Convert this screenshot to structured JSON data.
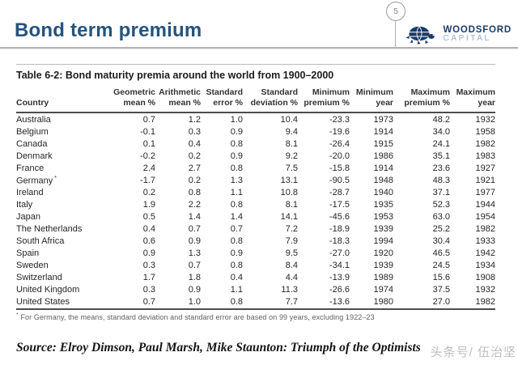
{
  "header": {
    "title": "Bond term premium",
    "page_number": "5",
    "logo": {
      "name": "WOODSFORD",
      "subname": "CAPITAL",
      "icon": "turtle-icon"
    }
  },
  "table": {
    "title": "Table 6-2: Bond maturity premia around the world from 1900–2000",
    "columns": [
      {
        "top": "",
        "bottom": "Country",
        "align": "left"
      },
      {
        "top": "Geometric",
        "bottom": "mean %",
        "align": "right"
      },
      {
        "top": "Arithmetic",
        "bottom": "mean %",
        "align": "right"
      },
      {
        "top": "Standard",
        "bottom": "error %",
        "align": "right"
      },
      {
        "top": "Standard",
        "bottom": "deviation %",
        "align": "right"
      },
      {
        "top": "Minimum",
        "bottom": "premium %",
        "align": "right"
      },
      {
        "top": "Minimum",
        "bottom": "year",
        "align": "right"
      },
      {
        "top": "Maximum",
        "bottom": "premium %",
        "align": "right"
      },
      {
        "top": "Maximum",
        "bottom": "year",
        "align": "right"
      }
    ],
    "rows": [
      {
        "country": "Australia",
        "note": "",
        "values": [
          "0.7",
          "1.2",
          "1.0",
          "10.4",
          "-23.3",
          "1973",
          "48.2",
          "1932"
        ]
      },
      {
        "country": "Belgium",
        "note": "",
        "values": [
          "-0.1",
          "0.3",
          "0.9",
          "9.4",
          "-19.6",
          "1914",
          "34.0",
          "1958"
        ]
      },
      {
        "country": "Canada",
        "note": "",
        "values": [
          "0.1",
          "0.4",
          "0.8",
          "8.1",
          "-26.4",
          "1915",
          "24.1",
          "1982"
        ]
      },
      {
        "country": "Denmark",
        "note": "",
        "values": [
          "-0.2",
          "0.2",
          "0.9",
          "9.2",
          "-20.0",
          "1986",
          "35.1",
          "1983"
        ]
      },
      {
        "country": "France",
        "note": "",
        "values": [
          "2.4",
          "2.7",
          "0.8",
          "7.5",
          "-15.8",
          "1914",
          "23.6",
          "1927"
        ]
      },
      {
        "country": "Germany",
        "note": "*",
        "values": [
          "-1.7",
          "0.2",
          "1.3",
          "13.1",
          "-90.5",
          "1948",
          "48.3",
          "1921"
        ]
      },
      {
        "country": "Ireland",
        "note": "",
        "values": [
          "0.2",
          "0.8",
          "1.1",
          "10.8",
          "-28.7",
          "1940",
          "37.1",
          "1977"
        ]
      },
      {
        "country": "Italy",
        "note": "",
        "values": [
          "1.9",
          "2.2",
          "0.8",
          "8.1",
          "-17.5",
          "1935",
          "52.3",
          "1944"
        ]
      },
      {
        "country": "Japan",
        "note": "",
        "values": [
          "0.5",
          "1.4",
          "1.4",
          "14.1",
          "-45.6",
          "1953",
          "63.0",
          "1954"
        ]
      },
      {
        "country": "The Netherlands",
        "note": "",
        "values": [
          "0.4",
          "0.7",
          "0.7",
          "7.2",
          "-18.9",
          "1939",
          "25.2",
          "1982"
        ]
      },
      {
        "country": "South Africa",
        "note": "",
        "values": [
          "0.6",
          "0.9",
          "0.8",
          "7.9",
          "-18.3",
          "1994",
          "30.4",
          "1933"
        ]
      },
      {
        "country": "Spain",
        "note": "",
        "values": [
          "0.9",
          "1.3",
          "0.9",
          "9.5",
          "-27.0",
          "1920",
          "46.5",
          "1942"
        ]
      },
      {
        "country": "Sweden",
        "note": "",
        "values": [
          "0.3",
          "0.7",
          "0.8",
          "8.4",
          "-34.1",
          "1939",
          "24.5",
          "1934"
        ]
      },
      {
        "country": "Switzerland",
        "note": "",
        "values": [
          "1.7",
          "1.8",
          "0.4",
          "4.4",
          "-13.9",
          "1989",
          "15.6",
          "1908"
        ]
      },
      {
        "country": "United Kingdom",
        "note": "",
        "values": [
          "0.3",
          "0.9",
          "1.1",
          "11.3",
          "-26.6",
          "1974",
          "37.5",
          "1932"
        ]
      },
      {
        "country": "United States",
        "note": "",
        "values": [
          "0.7",
          "1.0",
          "0.8",
          "7.7",
          "-13.6",
          "1980",
          "27.0",
          "1982"
        ]
      }
    ],
    "footnote": {
      "marker": "*",
      "text": "For Germany, the means, standard deviation and standard error are based on 99 years, excluding 1922–23"
    }
  },
  "source": {
    "text": "Source: Elroy Dimson, Paul Marsh, Mike Staunton: Triumph of the Optimists"
  },
  "watermark": {
    "text": "头条号/ 伍治坚"
  },
  "colors": {
    "title_blue": "#25537E",
    "logo_navy": "#1B3A6B",
    "logo_light_blue": "#8FABCE",
    "rule_gray": "#b3b3b3",
    "table_line_dark": "#4d4d4d",
    "watermark_gray": "#bdbdbd"
  }
}
